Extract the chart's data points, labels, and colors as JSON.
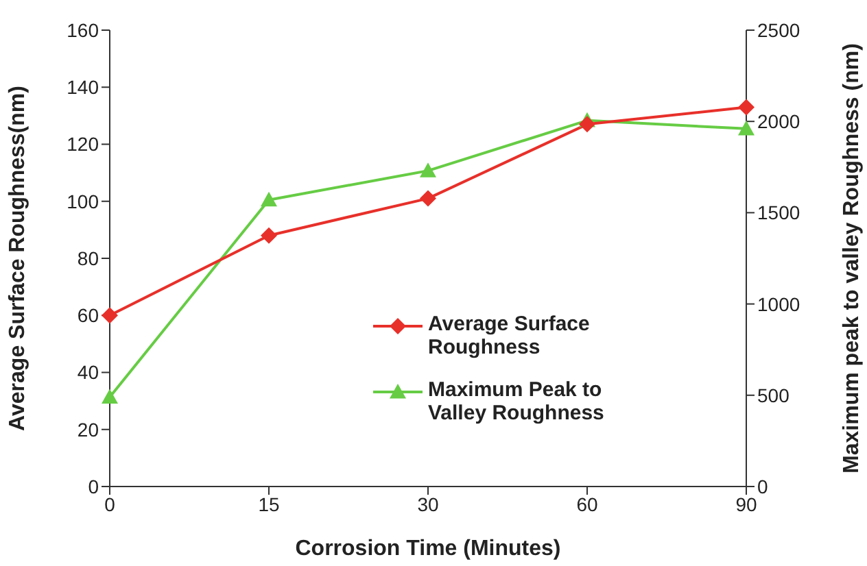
{
  "chart_data": {
    "type": "line",
    "xlabel": "Corrosion Time (Minutes)",
    "ylabel": "Average Surface Roughness(nm)",
    "y2label": "Maximum peak to valley Roughness (nm)",
    "categories": [
      "0",
      "15",
      "30",
      "60",
      "90"
    ],
    "series": [
      {
        "name": "Average Surface Roughness",
        "color": "#e8302a",
        "marker": "diamond",
        "values": [
          60,
          88,
          101,
          127,
          133
        ]
      },
      {
        "name": "Maximum Peak to Valley Roughness",
        "color": "#66cc44",
        "marker": "triangle",
        "axis": "y2",
        "values": [
          490,
          1570,
          1730,
          2005,
          1960
        ]
      }
    ],
    "ylim": [
      0,
      160
    ],
    "yticks": [
      0,
      20,
      40,
      60,
      80,
      100,
      120,
      140,
      160
    ],
    "y2lim": [
      0,
      2500
    ],
    "y2ticks": [
      0,
      500,
      1000,
      1500,
      2000,
      2500
    ],
    "grid": false,
    "legend": "center",
    "line_style": "solid"
  }
}
